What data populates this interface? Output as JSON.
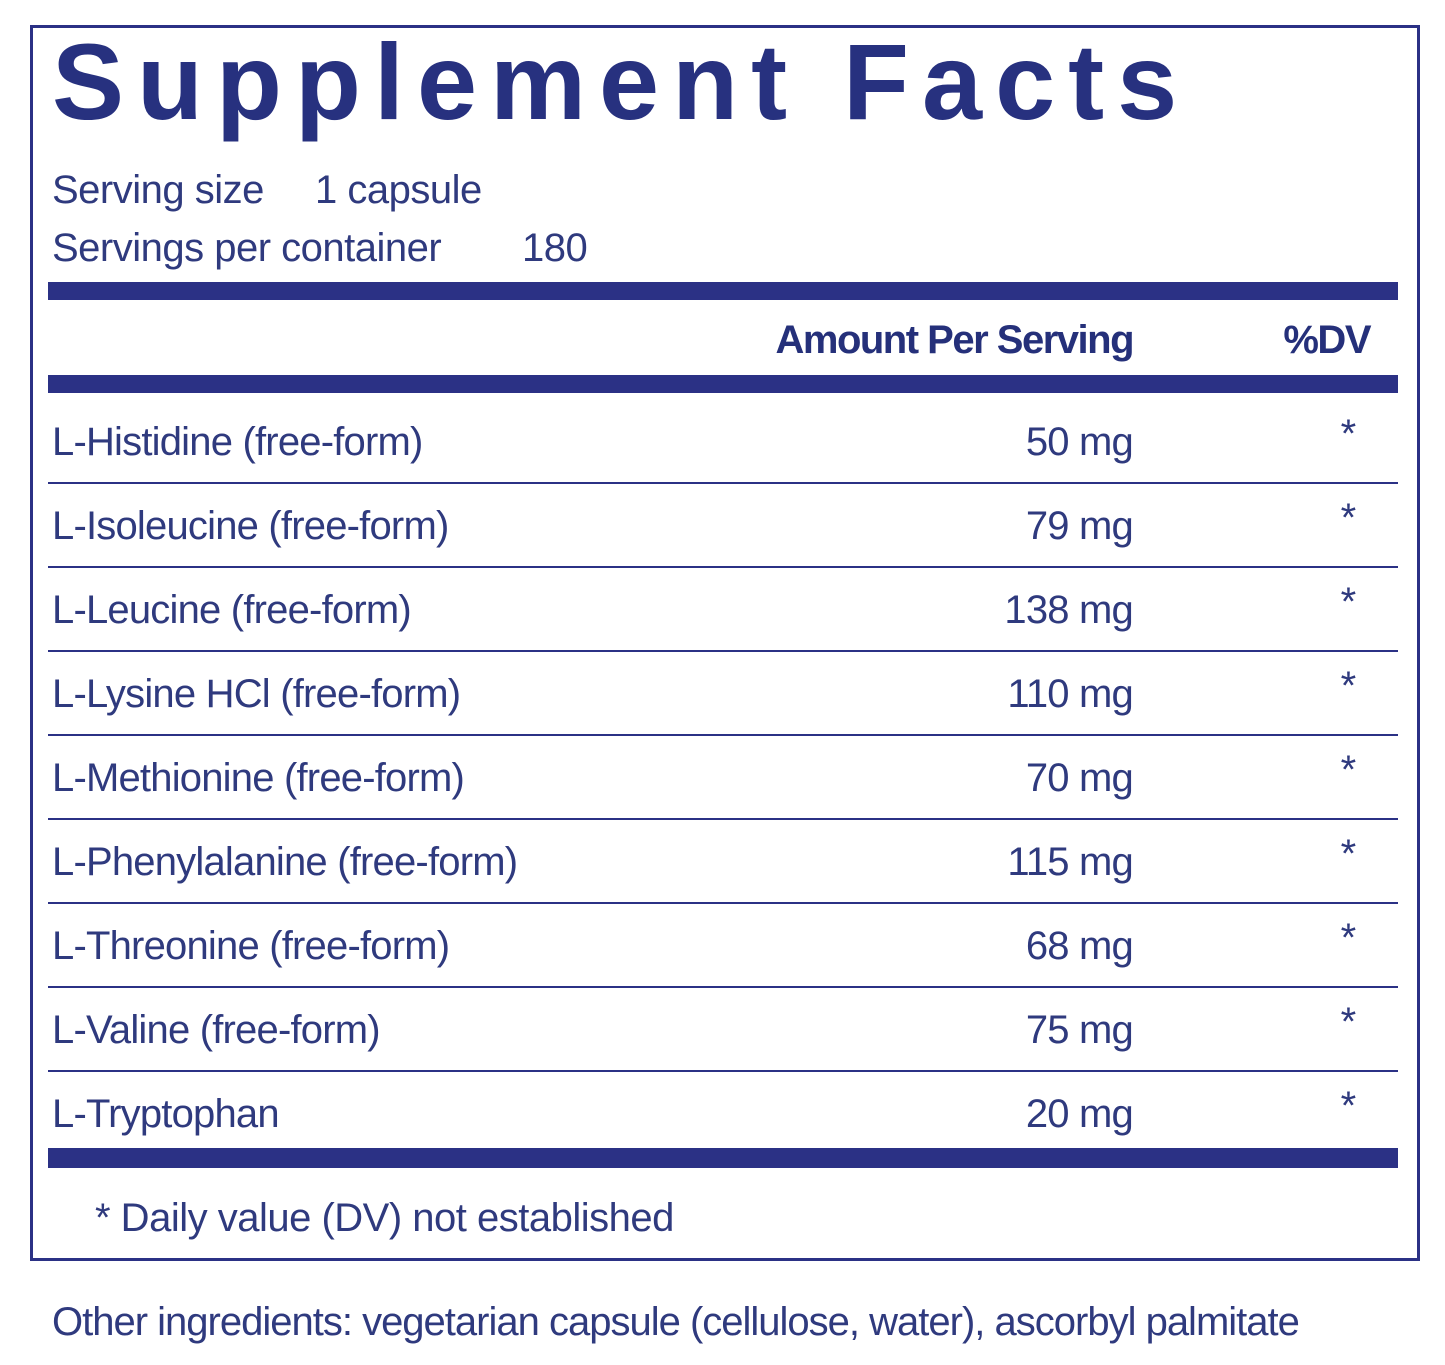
{
  "title": "Supplement Facts",
  "serving_size": {
    "label": "Serving size",
    "value": "1 capsule"
  },
  "servings_per_container": {
    "label": "Servings per container",
    "value": "180"
  },
  "table": {
    "header": [
      "Amount Per Serving",
      "%DV"
    ],
    "rows": [
      [
        "L-Histidine (free-form)",
        "50 mg",
        "*"
      ],
      [
        "L-Isoleucine  (free-form)",
        "79 mg",
        "*"
      ],
      [
        "L-Leucine (free-form)",
        "138 mg",
        "*"
      ],
      [
        "L-Lysine HCl (free-form)",
        "110 mg",
        "*"
      ],
      [
        "L-Methionine (free-form)",
        "70 mg",
        "*"
      ],
      [
        "L-Phenylalanine (free-form)",
        "115 mg",
        "*"
      ],
      [
        "L-Threonine (free-form)",
        "68 mg",
        "*"
      ],
      [
        "L-Valine (free-form)",
        "75 mg",
        "*"
      ],
      [
        "L-Tryptophan",
        "20 mg",
        "*"
      ]
    ]
  },
  "footnote": "* Daily value (DV) not established",
  "other_ingredients": "Other ingredients: vegetarian capsule (cellulose, water), ascorbyl palmitate"
}
